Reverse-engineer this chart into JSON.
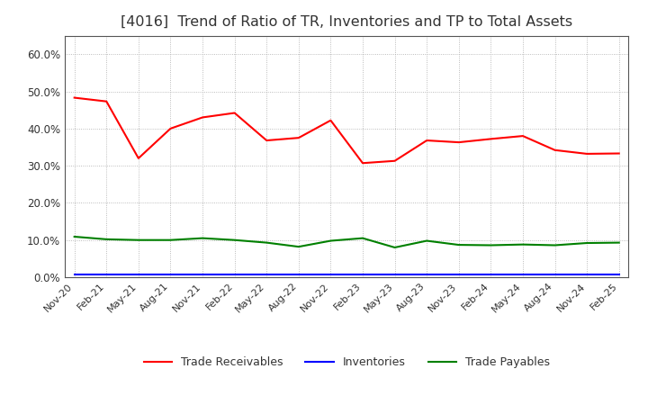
{
  "title": "[4016]  Trend of Ratio of TR, Inventories and TP to Total Assets",
  "title_fontsize": 11.5,
  "title_color": "#333333",
  "x_labels": [
    "Nov-20",
    "Feb-21",
    "May-21",
    "Aug-21",
    "Nov-21",
    "Feb-22",
    "May-22",
    "Aug-22",
    "Nov-22",
    "Feb-23",
    "May-23",
    "Aug-23",
    "Nov-23",
    "Feb-24",
    "May-24",
    "Aug-24",
    "Nov-24",
    "Feb-25"
  ],
  "trade_receivables": [
    0.483,
    0.473,
    0.32,
    0.4,
    0.43,
    0.442,
    0.368,
    0.375,
    0.422,
    0.307,
    0.313,
    0.368,
    0.363,
    0.372,
    0.38,
    0.342,
    0.332,
    0.333
  ],
  "inventories": [
    0.008,
    0.008,
    0.008,
    0.008,
    0.008,
    0.008,
    0.008,
    0.008,
    0.008,
    0.008,
    0.008,
    0.008,
    0.008,
    0.008,
    0.008,
    0.008,
    0.008,
    0.008
  ],
  "trade_payables": [
    0.109,
    0.102,
    0.1,
    0.1,
    0.105,
    0.1,
    0.093,
    0.082,
    0.098,
    0.105,
    0.08,
    0.098,
    0.087,
    0.086,
    0.088,
    0.086,
    0.092,
    0.093
  ],
  "tr_color": "#FF0000",
  "inv_color": "#0000FF",
  "tp_color": "#008000",
  "ylim": [
    0.0,
    0.65
  ],
  "yticks": [
    0.0,
    0.1,
    0.2,
    0.3,
    0.4,
    0.5,
    0.6
  ],
  "legend_labels": [
    "Trade Receivables",
    "Inventories",
    "Trade Payables"
  ],
  "background_color": "#ffffff",
  "grid_color": "#aaaaaa"
}
